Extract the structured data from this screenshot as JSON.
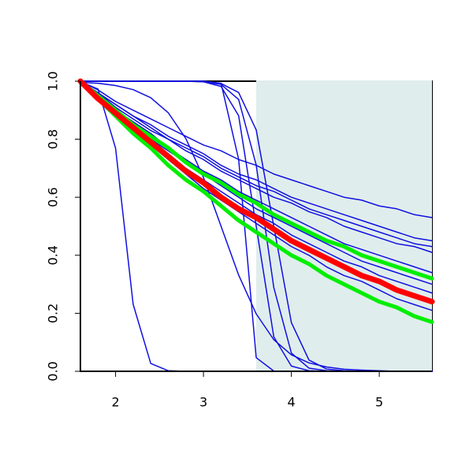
{
  "chart_data": {
    "type": "line",
    "x": [
      1.6,
      1.8,
      2.0,
      2.2,
      2.4,
      2.6,
      2.8,
      3.0,
      3.2,
      3.4,
      3.6,
      3.8,
      4.0,
      4.2,
      4.4,
      4.6,
      4.8,
      5.0,
      5.2,
      5.4,
      5.6
    ],
    "xlim": [
      1.6,
      5.6
    ],
    "xticks": [
      2,
      3,
      4,
      5
    ],
    "ylim": [
      0,
      1
    ],
    "yticks": [
      {
        "value": 0,
        "label": "0.0"
      },
      0.2,
      0.4,
      0.6,
      0.8,
      {
        "value": 1,
        "label": "1.0"
      }
    ],
    "shaded_xrange": [
      3.6,
      5.6
    ],
    "shade_color": "#e0eded",
    "series": [
      {
        "color": "#1010e0",
        "width": 1.5,
        "values": [
          1,
          0.97,
          0.93,
          0.9,
          0.87,
          0.84,
          0.81,
          0.78,
          0.76,
          0.73,
          0.71,
          0.68,
          0.66,
          0.64,
          0.62,
          0.6,
          0.59,
          0.57,
          0.56,
          0.54,
          0.53
        ]
      },
      {
        "color": "#1010e0",
        "width": 1.5,
        "values": [
          1,
          0.96,
          0.92,
          0.88,
          0.85,
          0.81,
          0.78,
          0.75,
          0.71,
          0.68,
          0.66,
          0.63,
          0.6,
          0.58,
          0.56,
          0.54,
          0.52,
          0.5,
          0.48,
          0.46,
          0.45
        ]
      },
      {
        "color": "#1010e0",
        "width": 1.5,
        "values": [
          1,
          0.96,
          0.92,
          0.88,
          0.84,
          0.8,
          0.77,
          0.74,
          0.7,
          0.67,
          0.64,
          0.62,
          0.59,
          0.56,
          0.54,
          0.52,
          0.5,
          0.48,
          0.46,
          0.44,
          0.43
        ]
      },
      {
        "color": "#1010e0",
        "width": 1.5,
        "values": [
          1,
          0.96,
          0.91,
          0.87,
          0.83,
          0.8,
          0.76,
          0.73,
          0.69,
          0.66,
          0.63,
          0.6,
          0.58,
          0.55,
          0.53,
          0.5,
          0.48,
          0.46,
          0.44,
          0.43,
          0.41
        ]
      },
      {
        "color": "#1010e0",
        "width": 1.5,
        "values": [
          1,
          0.95,
          0.9,
          0.86,
          0.82,
          0.77,
          0.73,
          0.69,
          0.66,
          0.62,
          0.59,
          0.56,
          0.53,
          0.5,
          0.47,
          0.44,
          0.42,
          0.4,
          0.38,
          0.36,
          0.34
        ]
      },
      {
        "color": "#1010e0",
        "width": 1.5,
        "values": [
          1,
          0.95,
          0.9,
          0.85,
          0.8,
          0.76,
          0.72,
          0.68,
          0.64,
          0.6,
          0.56,
          0.53,
          0.5,
          0.47,
          0.44,
          0.41,
          0.38,
          0.36,
          0.34,
          0.32,
          0.3
        ]
      },
      {
        "color": "#1010e0",
        "width": 1.5,
        "values": [
          1,
          0.95,
          0.89,
          0.84,
          0.8,
          0.75,
          0.7,
          0.66,
          0.62,
          0.58,
          0.54,
          0.51,
          0.47,
          0.44,
          0.41,
          0.38,
          0.36,
          0.33,
          0.31,
          0.29,
          0.27
        ]
      },
      {
        "color": "#1010e0",
        "width": 1.5,
        "values": [
          1,
          0.94,
          0.89,
          0.83,
          0.78,
          0.73,
          0.68,
          0.63,
          0.59,
          0.55,
          0.51,
          0.47,
          0.43,
          0.4,
          0.36,
          0.33,
          0.31,
          0.28,
          0.25,
          0.23,
          0.21
        ]
      },
      {
        "color": "#1010e0",
        "width": 1.5,
        "values": [
          0.998,
          0.973,
          0.769,
          0.231,
          0.027,
          0.002,
          0,
          0,
          0,
          0,
          0,
          0,
          0,
          0,
          0,
          0,
          0,
          0,
          0,
          0,
          0
        ]
      },
      {
        "color": "#1010e0",
        "width": 1.5,
        "values": [
          1,
          1,
          1,
          1,
          1,
          1,
          1,
          1,
          0.993,
          0.731,
          0.047,
          0.001,
          0,
          0,
          0,
          0,
          0,
          0,
          0,
          0,
          0
        ]
      },
      {
        "color": "#1010e0",
        "width": 1.5,
        "values": [
          1,
          1,
          1,
          1,
          1,
          1,
          1,
          0.998,
          0.982,
          0.881,
          0.5,
          0.119,
          0.018,
          0.002,
          0,
          0,
          0,
          0,
          0,
          0,
          0
        ]
      },
      {
        "color": "#1010e0",
        "width": 1.5,
        "values": [
          1,
          1,
          1,
          1,
          1,
          1,
          1,
          0.998,
          0.989,
          0.937,
          0.711,
          0.289,
          0.063,
          0.011,
          0.002,
          0,
          0,
          0,
          0,
          0,
          0
        ]
      },
      {
        "color": "#1010e0",
        "width": 1.5,
        "values": [
          1,
          1,
          1,
          1,
          1,
          1,
          1,
          1,
          0.992,
          0.961,
          0.832,
          0.5,
          0.168,
          0.039,
          0.008,
          0.002,
          0,
          0,
          0,
          0,
          0
        ]
      },
      {
        "color": "#1010e0",
        "width": 1.5,
        "values": [
          0.996,
          0.993,
          0.985,
          0.971,
          0.943,
          0.891,
          0.802,
          0.668,
          0.5,
          0.332,
          0.198,
          0.109,
          0.057,
          0.029,
          0.015,
          0.007,
          0.004,
          0.002,
          0,
          0,
          0
        ]
      },
      {
        "color": "#00ee00",
        "width": 5,
        "values": [
          1,
          0.95,
          0.9,
          0.85,
          0.81,
          0.77,
          0.72,
          0.68,
          0.65,
          0.61,
          0.58,
          0.54,
          0.51,
          0.48,
          0.45,
          0.43,
          0.4,
          0.38,
          0.36,
          0.34,
          0.32
        ]
      },
      {
        "color": "#00ee00",
        "width": 5,
        "values": [
          1,
          0.94,
          0.88,
          0.82,
          0.77,
          0.71,
          0.66,
          0.62,
          0.57,
          0.52,
          0.48,
          0.44,
          0.4,
          0.37,
          0.33,
          0.3,
          0.27,
          0.24,
          0.22,
          0.19,
          0.17
        ]
      },
      {
        "color": "#ff0000",
        "width": 7,
        "values": [
          1,
          0.94,
          0.89,
          0.84,
          0.79,
          0.74,
          0.69,
          0.65,
          0.6,
          0.56,
          0.53,
          0.49,
          0.45,
          0.42,
          0.39,
          0.36,
          0.33,
          0.31,
          0.28,
          0.26,
          0.24
        ]
      }
    ]
  }
}
